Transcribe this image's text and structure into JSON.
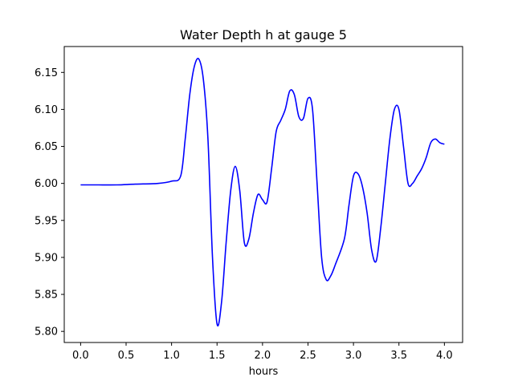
{
  "chart_data": {
    "type": "line",
    "title": "Water Depth h at gauge 5",
    "xlabel": "hours",
    "ylabel": "",
    "xlim": [
      -0.18,
      4.2
    ],
    "ylim": [
      5.785,
      6.185
    ],
    "xticks": [
      0.0,
      0.5,
      1.0,
      1.5,
      2.0,
      2.5,
      3.0,
      3.5,
      4.0
    ],
    "xtick_labels": [
      "0.0",
      "0.5",
      "1.0",
      "1.5",
      "2.0",
      "2.5",
      "3.0",
      "3.5",
      "4.0"
    ],
    "yticks": [
      5.8,
      5.85,
      5.9,
      5.95,
      6.0,
      6.05,
      6.1,
      6.15
    ],
    "ytick_labels": [
      "5.80",
      "5.85",
      "5.90",
      "5.95",
      "6.00",
      "6.05",
      "6.10",
      "6.15"
    ],
    "grid": false,
    "series": [
      {
        "color": "#0000ff",
        "x": [
          0.0,
          0.2,
          0.4,
          0.6,
          0.85,
          1.0,
          1.1,
          1.15,
          1.2,
          1.25,
          1.3,
          1.35,
          1.4,
          1.45,
          1.5,
          1.55,
          1.6,
          1.65,
          1.7,
          1.75,
          1.8,
          1.85,
          1.9,
          1.95,
          2.0,
          2.05,
          2.1,
          2.15,
          2.2,
          2.25,
          2.3,
          2.35,
          2.4,
          2.45,
          2.5,
          2.55,
          2.6,
          2.65,
          2.7,
          2.75,
          2.8,
          2.9,
          2.95,
          3.0,
          3.05,
          3.1,
          3.15,
          3.2,
          3.25,
          3.3,
          3.35,
          3.4,
          3.45,
          3.5,
          3.55,
          3.6,
          3.65,
          3.7,
          3.75,
          3.8,
          3.85,
          3.9,
          3.95,
          4.0
        ],
        "y": [
          5.998,
          5.998,
          5.998,
          5.999,
          6.0,
          6.003,
          6.01,
          6.06,
          6.12,
          6.158,
          6.168,
          6.14,
          6.06,
          5.9,
          5.81,
          5.84,
          5.92,
          5.99,
          6.023,
          5.99,
          5.92,
          5.925,
          5.96,
          5.985,
          5.978,
          5.975,
          6.02,
          6.07,
          6.085,
          6.1,
          6.125,
          6.12,
          6.09,
          6.088,
          6.115,
          6.1,
          6.0,
          5.9,
          5.87,
          5.875,
          5.89,
          5.925,
          5.97,
          6.01,
          6.013,
          5.995,
          5.96,
          5.91,
          5.895,
          5.94,
          6.0,
          6.06,
          6.1,
          6.1,
          6.05,
          6.0,
          6.0,
          6.01,
          6.02,
          6.035,
          6.055,
          6.06,
          6.055,
          6.053
        ]
      }
    ]
  }
}
